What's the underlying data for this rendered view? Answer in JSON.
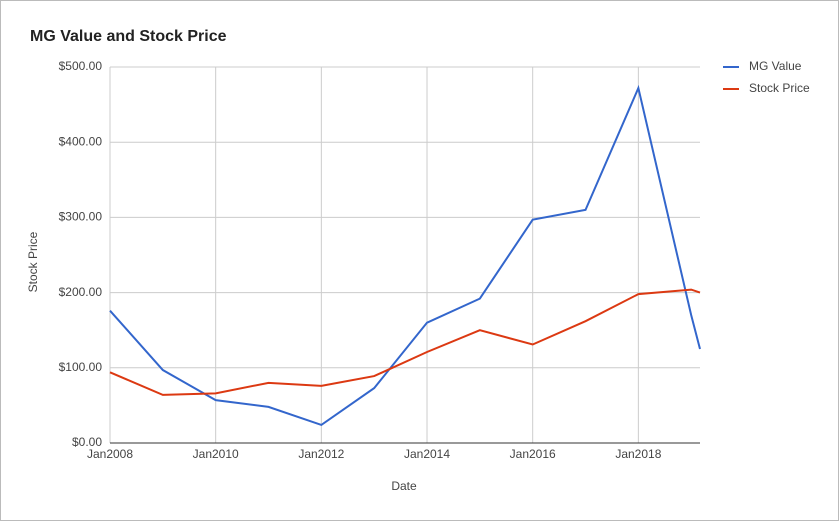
{
  "chart_data": {
    "type": "line",
    "title": "MG Value and Stock Price",
    "x_label": "Date",
    "y_label": "Stock Price",
    "x": [
      "2008-01",
      "2009-01",
      "2010-01",
      "2011-01",
      "2012-01",
      "2013-01",
      "2014-01",
      "2015-01",
      "2016-01",
      "2017-01",
      "2018-01",
      "2019-01",
      "2019-03"
    ],
    "series": [
      {
        "name": "MG Value",
        "color": "#3366cc",
        "values": [
          176,
          97,
          57,
          48,
          24,
          73,
          160,
          192,
          297,
          310,
          472,
          170,
          125
        ]
      },
      {
        "name": "Stock Price",
        "color": "#dc3912",
        "values": [
          94,
          64,
          66,
          80,
          76,
          89,
          121,
          150,
          131,
          162,
          198,
          204,
          200
        ]
      }
    ],
    "xlim": [
      "2008-01",
      "2019-03"
    ],
    "xticks": [
      {
        "value": "2008-01",
        "label": "Jan2008"
      },
      {
        "value": "2010-01",
        "label": "Jan2010"
      },
      {
        "value": "2012-01",
        "label": "Jan2012"
      },
      {
        "value": "2014-01",
        "label": "Jan2014"
      },
      {
        "value": "2016-01",
        "label": "Jan2016"
      },
      {
        "value": "2018-01",
        "label": "Jan2018"
      }
    ],
    "ylim": [
      0,
      500
    ],
    "yticks": [
      {
        "value": 0,
        "label": "$0.00"
      },
      {
        "value": 100,
        "label": "$100.00"
      },
      {
        "value": 200,
        "label": "$200.00"
      },
      {
        "value": 300,
        "label": "$300.00"
      },
      {
        "value": 400,
        "label": "$400.00"
      },
      {
        "value": 500,
        "label": "$500.00"
      }
    ],
    "grid": true,
    "legend": "right"
  }
}
